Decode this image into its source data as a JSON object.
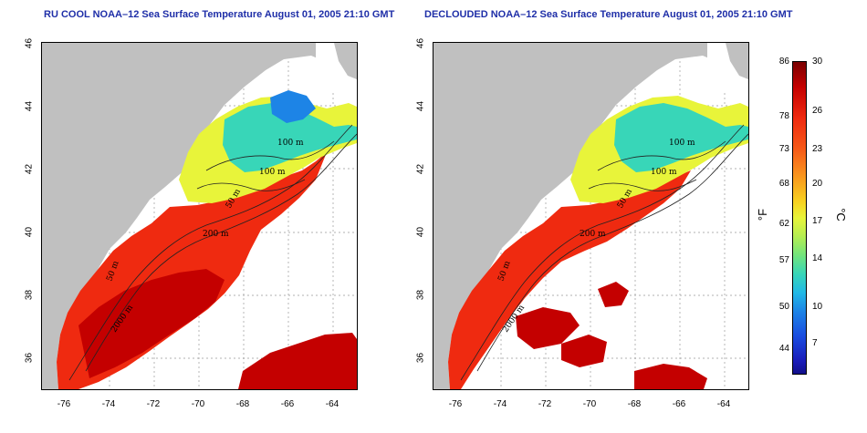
{
  "panels": [
    {
      "title": "RU COOL NOAA–12 Sea Surface Temperature August 01, 2005 21:10 GMT",
      "contours": [
        "100 m",
        "100 m",
        "50 m",
        "200 m",
        "50 m",
        "2000 m"
      ]
    },
    {
      "title": "DECLOUDED NOAA–12 Sea Surface Temperature August 01, 2005 21:10 GMT",
      "contours": [
        "100 m",
        "100 m",
        "50 m",
        "200 m",
        "50 m",
        "2000 m"
      ]
    }
  ],
  "axes": {
    "lat_ticks": [
      "46",
      "44",
      "42",
      "40",
      "38",
      "36"
    ],
    "lon_ticks": [
      "-76",
      "-74",
      "-72",
      "-70",
      "-68",
      "-66",
      "-64"
    ],
    "lat_range": [
      35,
      46
    ],
    "lon_range": [
      -77,
      -63
    ]
  },
  "colorbar": {
    "unit_f": "°F",
    "unit_c": "°C",
    "f_ticks": [
      "86",
      "78",
      "73",
      "68",
      "62",
      "57",
      "50",
      "44"
    ],
    "c_ticks": [
      "30",
      "26",
      "23",
      "20",
      "17",
      "14",
      "10",
      "7"
    ],
    "colors": {
      "hot": "#c40000",
      "warm": "#f65a18",
      "mid": "#e8f43a",
      "cool": "#38d6b8",
      "cold": "#1a1cb8",
      "land": "#c0c0c0"
    }
  }
}
